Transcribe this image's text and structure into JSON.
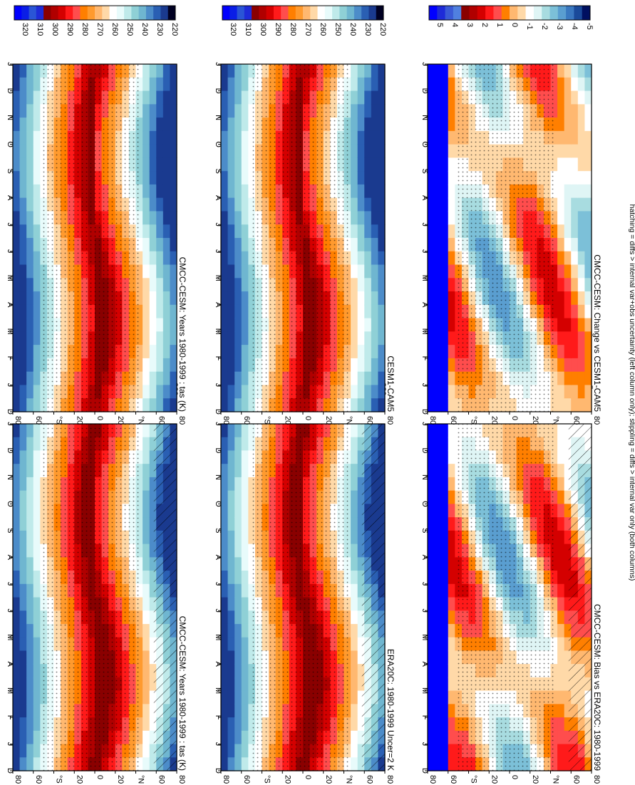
{
  "footer": "hatching = diffs > internal var+obs uncertainty (left column only); stippling = diffs > internal var only (both columns)",
  "months": [
    "D",
    "J",
    "F",
    "M",
    "A",
    "M",
    "J",
    "J",
    "A",
    "S",
    "O",
    "N",
    "D",
    "J"
  ],
  "lat_ticks": [
    "80",
    "60",
    "°N",
    "20",
    "0",
    "20",
    "°S",
    "60",
    "80"
  ],
  "palette_temp": [
    "#0000ff",
    "#0a1ee6",
    "#2a55d6",
    "#1e2bd8",
    "#8a0000",
    "#b00000",
    "#d40000",
    "#ff1a1a",
    "#ff4d4d",
    "#ff7f00",
    "#ff9a2e",
    "#ffb870",
    "#ffd9a8",
    "#ffffff",
    "#e8fbfb",
    "#bfeaea",
    "#8fd0d6",
    "#6fb6d0",
    "#4c8cc9",
    "#2a5fb3",
    "#1a3a8f",
    "#000022"
  ],
  "palette_diff": [
    "#0000ff",
    "#1e2bd8",
    "#3a5ad6",
    "#5080e0",
    "#8a0000",
    "#b00000",
    "#d40000",
    "#ff1a1a",
    "#ff4d4d",
    "#ff7f00",
    "#ffb870",
    "#ffd9a8",
    "#ffffff",
    "#dff5f5",
    "#a8dce0",
    "#7cc0d8",
    "#5a9ed0",
    "#3a78c0",
    "#1a4a9a",
    "#001060"
  ],
  "chart_data": [
    {
      "type": "heatmap",
      "title": "CMCC-CESM: Years 1980-1999 : tas (K)",
      "colorbar_labels": [
        "320",
        "310",
        "300",
        "290",
        "280",
        "270",
        "260",
        "250",
        "240",
        "230",
        "220"
      ],
      "x": [
        "D",
        "J",
        "F",
        "M",
        "A",
        "M",
        "J",
        "J",
        "A",
        "S",
        "O",
        "N",
        "D",
        "J"
      ],
      "y_ticks": [
        "80",
        "60",
        "°N",
        "20",
        "0",
        "20",
        "°S",
        "60",
        "80"
      ],
      "hatching": true,
      "stippling": true
    },
    {
      "type": "heatmap",
      "title": "CMCC-CESM: Years 1980-1999 : tas (K)",
      "colorbar_labels": [
        "320",
        "310",
        "300",
        "290",
        "280",
        "270",
        "260",
        "250",
        "240",
        "230",
        "220"
      ],
      "x": [
        "D",
        "J",
        "F",
        "M",
        "A",
        "M",
        "J",
        "J",
        "A",
        "S",
        "O",
        "N",
        "D",
        "J"
      ],
      "y_ticks": [
        "80",
        "60",
        "°N",
        "20",
        "0",
        "20",
        "°S",
        "60",
        "80"
      ],
      "stippling": true
    },
    {
      "type": "heatmap",
      "title": "ERA20C: 1980-1999 Uncer=2 K",
      "colorbar_labels": [
        "320",
        "310",
        "300",
        "290",
        "280",
        "270",
        "260",
        "250",
        "240",
        "230",
        "220"
      ],
      "x": [
        "D",
        "J",
        "F",
        "M",
        "A",
        "M",
        "J",
        "J",
        "A",
        "S",
        "O",
        "N",
        "D",
        "J"
      ],
      "y_ticks": [
        "80",
        "60",
        "°N",
        "20",
        "0",
        "20",
        "°S",
        "60",
        "80"
      ],
      "hatching": true,
      "stippling": true
    },
    {
      "type": "heatmap",
      "title": "CESM1-CAM5",
      "colorbar_labels": [
        "320",
        "310",
        "300",
        "290",
        "280",
        "270",
        "260",
        "250",
        "240",
        "230",
        "220"
      ],
      "x": [
        "D",
        "J",
        "F",
        "M",
        "A",
        "M",
        "J",
        "J",
        "A",
        "S",
        "O",
        "N",
        "D",
        "J"
      ],
      "y_ticks": [
        "80",
        "60",
        "°N",
        "20",
        "0",
        "20",
        "°S",
        "60",
        "80"
      ],
      "stippling": true
    },
    {
      "type": "heatmap",
      "title": "CMCC-CESM: Bias vs ERA20C: 1980-1999",
      "colorbar_labels": [
        "5",
        "4",
        "3",
        "2",
        "1",
        "0",
        "-1",
        "-2",
        "-3",
        "-4",
        "-5"
      ],
      "x": [
        "D",
        "J",
        "F",
        "M",
        "A",
        "M",
        "J",
        "J",
        "A",
        "S",
        "O",
        "N",
        "D",
        "J"
      ],
      "y_ticks": [
        "80",
        "60",
        "°N",
        "20",
        "0",
        "20",
        "°S",
        "60",
        "80"
      ],
      "hatching": true,
      "stippling": true
    },
    {
      "type": "heatmap",
      "title": "CMCC-CESM: Change vs CESM1-CAM5",
      "colorbar_labels": [
        "5",
        "4",
        "3",
        "2",
        "1",
        "0",
        "-1",
        "-2",
        "-3",
        "-4",
        "-5"
      ],
      "x": [
        "D",
        "J",
        "F",
        "M",
        "A",
        "M",
        "J",
        "J",
        "A",
        "S",
        "O",
        "N",
        "D",
        "J"
      ],
      "y_ticks": [
        "80",
        "60",
        "°N",
        "20",
        "0",
        "20",
        "°S",
        "60",
        "80"
      ],
      "stippling": true
    }
  ]
}
